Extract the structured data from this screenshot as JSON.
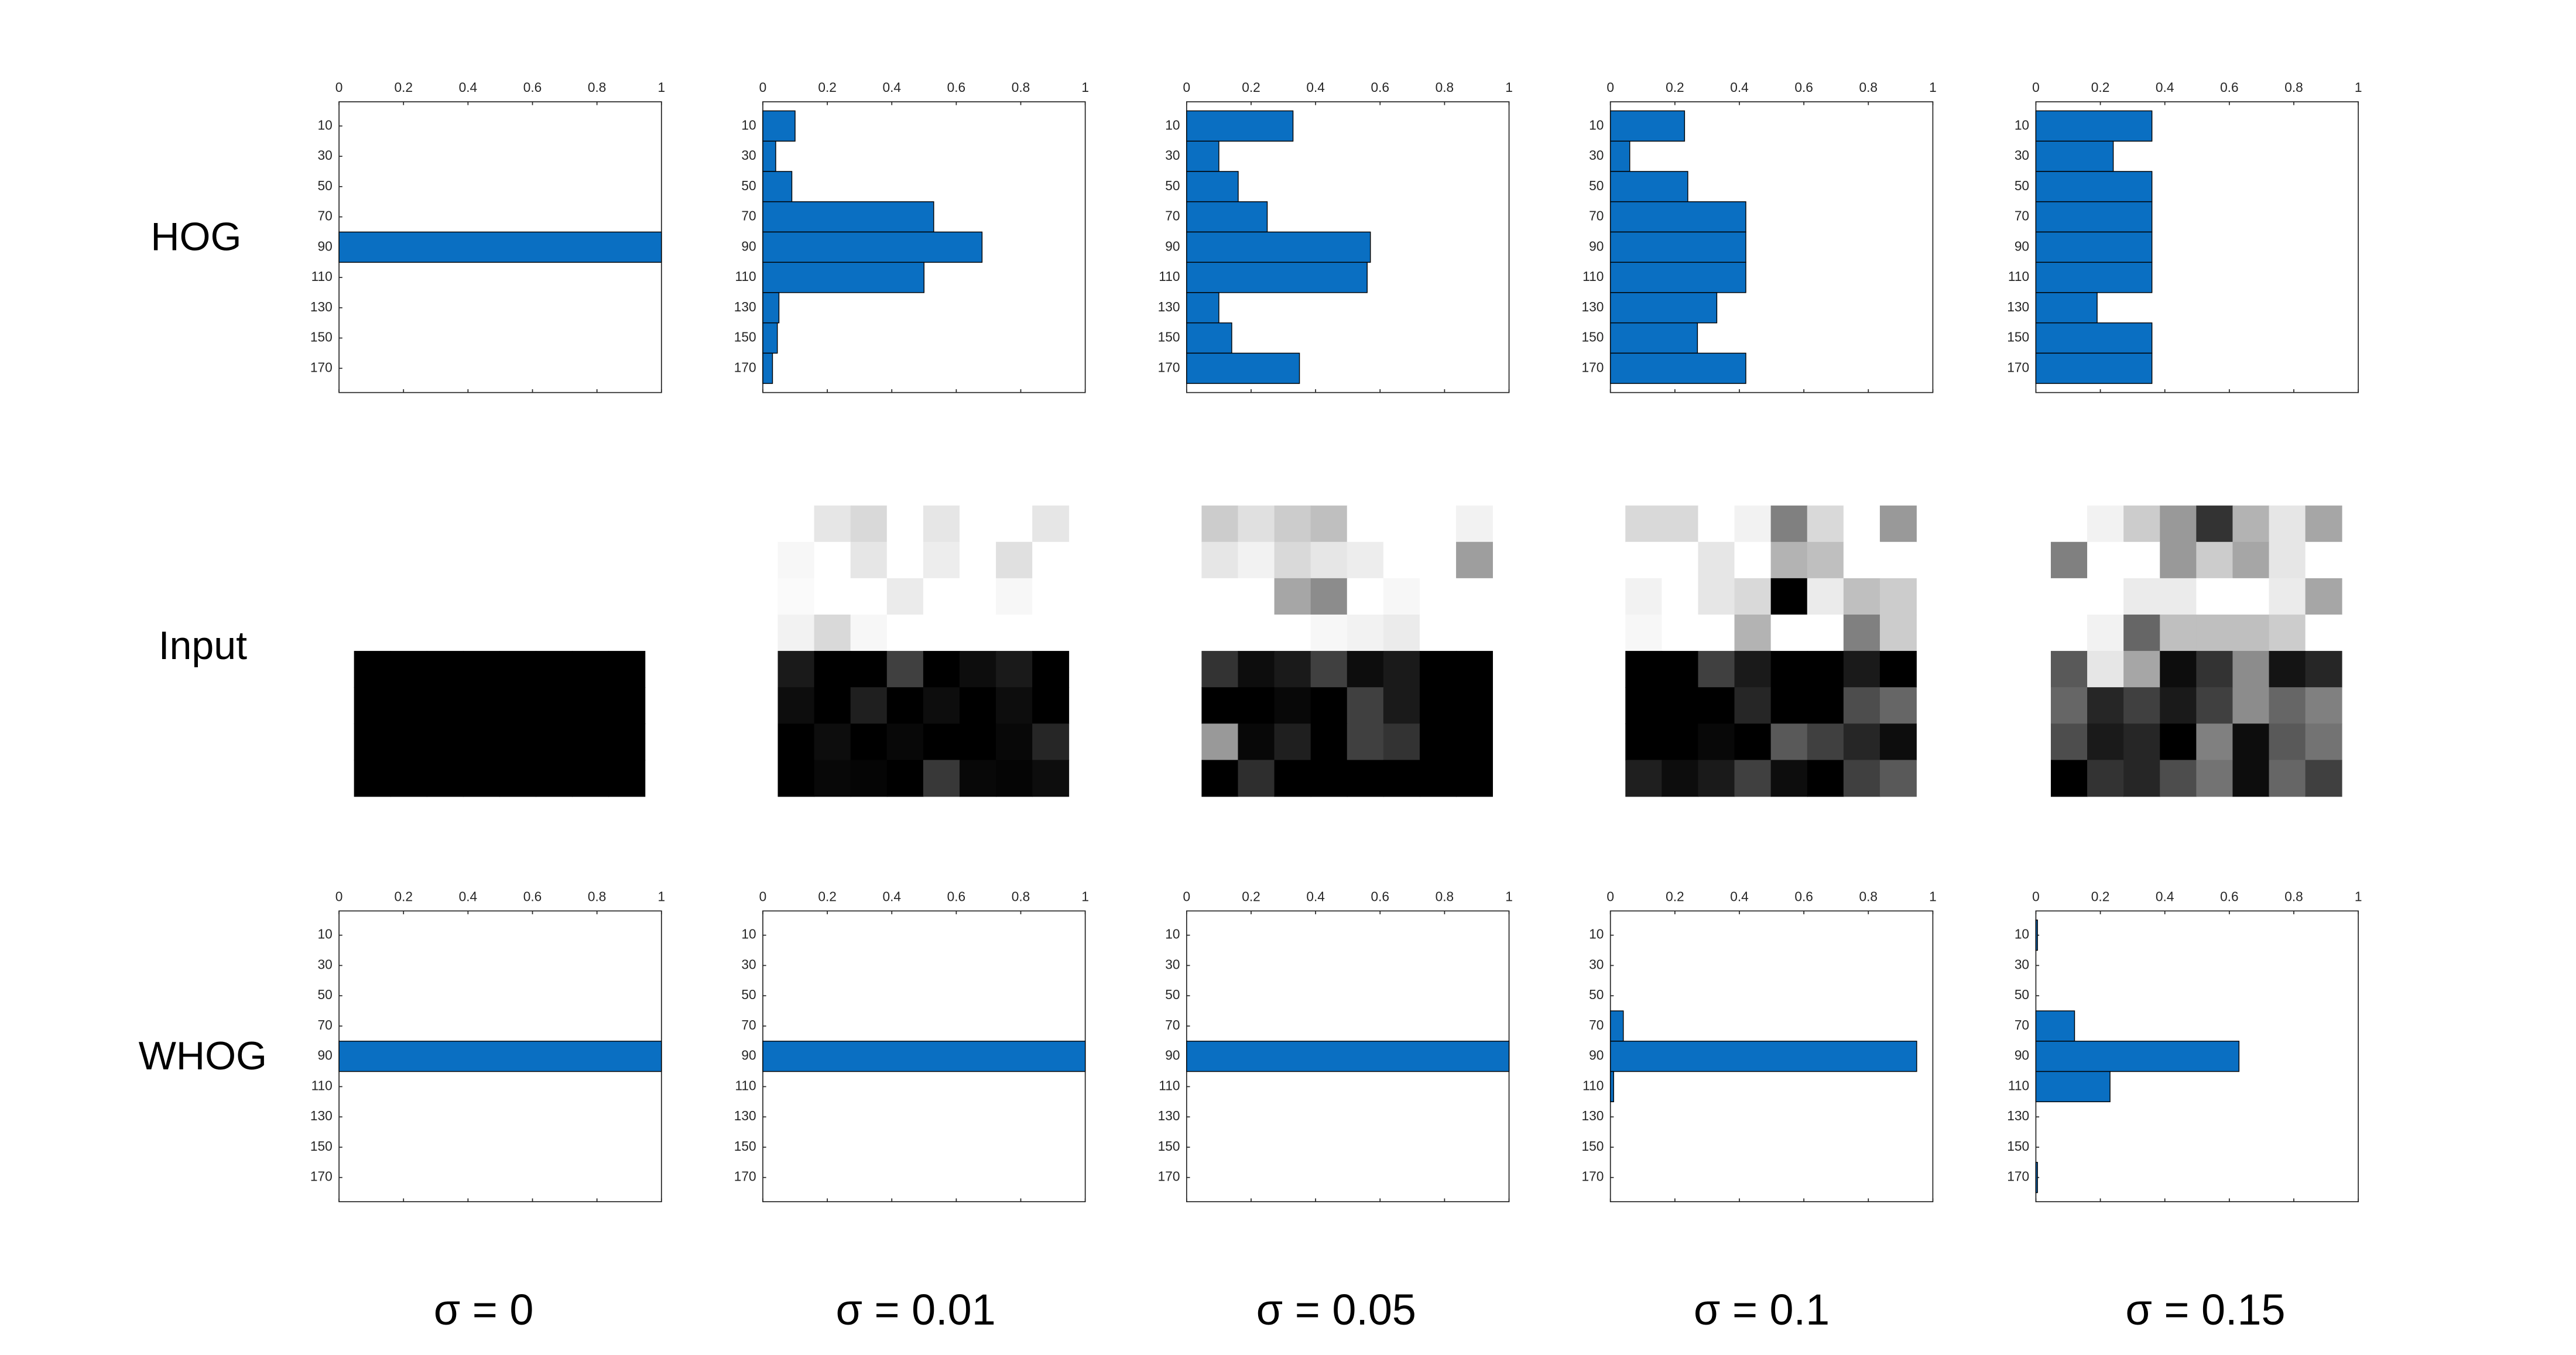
{
  "row_labels": [
    "HOG",
    "Input",
    "WHOG"
  ],
  "column_labels": [
    "σ = 0",
    "σ = 0.01",
    "σ = 0.05",
    "σ = 0.1",
    "σ = 0.15"
  ],
  "chart_data": [
    {
      "type": "barh",
      "color": "#0a6fc2",
      "categories": [
        10,
        30,
        50,
        70,
        90,
        110,
        130,
        150,
        170
      ],
      "values": [
        0,
        0,
        0,
        0,
        1,
        0,
        0,
        0,
        0
      ],
      "xlim": [
        0,
        1
      ],
      "xticks": [
        0,
        0.2,
        0.4,
        0.6,
        0.8,
        1
      ]
    },
    {
      "type": "barh",
      "color": "#0a6fc2",
      "categories": [
        10,
        30,
        50,
        70,
        90,
        110,
        130,
        150,
        170
      ],
      "values": [
        0.1,
        0.04,
        0.09,
        0.53,
        0.68,
        0.5,
        0.05,
        0.045,
        0.03
      ],
      "xlim": [
        0,
        1
      ],
      "xticks": [
        0,
        0.2,
        0.4,
        0.6,
        0.8,
        1
      ]
    },
    {
      "type": "barh",
      "color": "#0a6fc2",
      "categories": [
        10,
        30,
        50,
        70,
        90,
        110,
        130,
        150,
        170
      ],
      "values": [
        0.33,
        0.1,
        0.16,
        0.25,
        0.57,
        0.56,
        0.1,
        0.14,
        0.35
      ],
      "xlim": [
        0,
        1
      ],
      "xticks": [
        0,
        0.2,
        0.4,
        0.6,
        0.8,
        1
      ]
    },
    {
      "type": "barh",
      "color": "#0a6fc2",
      "categories": [
        10,
        30,
        50,
        70,
        90,
        110,
        130,
        150,
        170
      ],
      "values": [
        0.23,
        0.06,
        0.24,
        0.42,
        0.42,
        0.42,
        0.33,
        0.27,
        0.42
      ],
      "xlim": [
        0,
        1
      ],
      "xticks": [
        0,
        0.2,
        0.4,
        0.6,
        0.8,
        1
      ]
    },
    {
      "type": "barh",
      "color": "#0a6fc2",
      "categories": [
        10,
        30,
        50,
        70,
        90,
        110,
        130,
        150,
        170
      ],
      "values": [
        0.36,
        0.24,
        0.36,
        0.36,
        0.36,
        0.36,
        0.19,
        0.36,
        0.36
      ],
      "xlim": [
        0,
        1
      ],
      "xticks": [
        0,
        0.2,
        0.4,
        0.6,
        0.8,
        1
      ]
    },
    {
      "type": "image",
      "values": [
        [
          1,
          1,
          1,
          1,
          1,
          1,
          1,
          1
        ],
        [
          1,
          1,
          1,
          1,
          1,
          1,
          1,
          1
        ],
        [
          1,
          1,
          1,
          1,
          1,
          1,
          1,
          1
        ],
        [
          1,
          1,
          1,
          1,
          1,
          1,
          1,
          1
        ],
        [
          0,
          0,
          0,
          0,
          0,
          0,
          0,
          0
        ],
        [
          0,
          0,
          0,
          0,
          0,
          0,
          0,
          0
        ],
        [
          0,
          0,
          0,
          0,
          0,
          0,
          0,
          0
        ],
        [
          0,
          0,
          0,
          0,
          0,
          0,
          0,
          0
        ]
      ]
    },
    {
      "type": "image",
      "values": [
        [
          1,
          0.9,
          0.85,
          1,
          0.9,
          1,
          1,
          0.9
        ],
        [
          0.97,
          1,
          0.9,
          1,
          0.93,
          1,
          0.88,
          1
        ],
        [
          0.98,
          1,
          1,
          0.92,
          1,
          1,
          0.97,
          1
        ],
        [
          0.95,
          0.85,
          0.97,
          1,
          1,
          1,
          1,
          1
        ],
        [
          0.1,
          0,
          0,
          0.25,
          0,
          0.05,
          0.1,
          0
        ],
        [
          0.05,
          0,
          0.12,
          0,
          0.05,
          0,
          0.05,
          0
        ],
        [
          0,
          0.05,
          0,
          0.03,
          0,
          0,
          0.03,
          0.15
        ],
        [
          0,
          0.03,
          0.02,
          0,
          0.22,
          0.03,
          0.02,
          0.05
        ]
      ]
    },
    {
      "type": "image",
      "values": [
        [
          0.8,
          0.88,
          0.8,
          0.75,
          1,
          1,
          1,
          0.95
        ],
        [
          0.9,
          0.95,
          0.85,
          0.9,
          0.93,
          1,
          1,
          0.62
        ],
        [
          1,
          1,
          0.65,
          0.55,
          1,
          0.97,
          1,
          1
        ],
        [
          1,
          1,
          1,
          0.97,
          0.95,
          0.92,
          1,
          1
        ],
        [
          0.2,
          0.05,
          0.1,
          0.25,
          0.05,
          0.1,
          0,
          0
        ],
        [
          0,
          0,
          0.03,
          0,
          0.25,
          0.1,
          0,
          0
        ],
        [
          0.6,
          0.03,
          0.12,
          0,
          0.25,
          0.2,
          0,
          0
        ],
        [
          0,
          0.18,
          0,
          0,
          0,
          0,
          0,
          0
        ]
      ]
    },
    {
      "type": "image",
      "values": [
        [
          0.85,
          0.85,
          1,
          0.95,
          0.5,
          0.85,
          1,
          0.6
        ],
        [
          1,
          1,
          0.9,
          1,
          0.7,
          0.75,
          1,
          1
        ],
        [
          0.95,
          1,
          0.9,
          0.85,
          0,
          0.92,
          0.75,
          0.8
        ],
        [
          0.97,
          1,
          1,
          0.7,
          1,
          1,
          0.5,
          0.8
        ],
        [
          0,
          0,
          0.25,
          0.1,
          0,
          0,
          0.1,
          0
        ],
        [
          0,
          0,
          0,
          0.15,
          0,
          0,
          0.3,
          0.4
        ],
        [
          0,
          0,
          0.03,
          0,
          0.35,
          0.25,
          0.15,
          0.05
        ],
        [
          0.12,
          0.05,
          0.1,
          0.25,
          0.05,
          0,
          0.25,
          0.35
        ]
      ]
    },
    {
      "type": "image",
      "values": [
        [
          1,
          0.95,
          0.8,
          0.6,
          0.2,
          0.7,
          0.9,
          0.65
        ],
        [
          0.5,
          1,
          1,
          0.6,
          0.8,
          0.65,
          0.9,
          1
        ],
        [
          1,
          1,
          0.92,
          0.92,
          1,
          1,
          0.92,
          0.65
        ],
        [
          1,
          0.95,
          0.4,
          0.75,
          0.75,
          0.75,
          0.8,
          1
        ],
        [
          0.35,
          0.9,
          0.65,
          0.05,
          0.2,
          0.55,
          0.08,
          0.15
        ],
        [
          0.4,
          0.15,
          0.25,
          0.1,
          0.25,
          0.55,
          0.4,
          0.5
        ],
        [
          0.3,
          0.1,
          0.15,
          0,
          0.5,
          0.05,
          0.35,
          0.45
        ],
        [
          0,
          0.2,
          0.15,
          0.3,
          0.45,
          0.05,
          0.4,
          0.25
        ]
      ]
    },
    {
      "type": "barh",
      "color": "#0a6fc2",
      "categories": [
        10,
        30,
        50,
        70,
        90,
        110,
        130,
        150,
        170
      ],
      "values": [
        0,
        0,
        0,
        0,
        1,
        0,
        0,
        0,
        0
      ],
      "xlim": [
        0,
        1
      ],
      "xticks": [
        0,
        0.2,
        0.4,
        0.6,
        0.8,
        1
      ]
    },
    {
      "type": "barh",
      "color": "#0a6fc2",
      "categories": [
        10,
        30,
        50,
        70,
        90,
        110,
        130,
        150,
        170
      ],
      "values": [
        0,
        0,
        0,
        0,
        1,
        0,
        0,
        0,
        0
      ],
      "xlim": [
        0,
        1
      ],
      "xticks": [
        0,
        0.2,
        0.4,
        0.6,
        0.8,
        1
      ]
    },
    {
      "type": "barh",
      "color": "#0a6fc2",
      "categories": [
        10,
        30,
        50,
        70,
        90,
        110,
        130,
        150,
        170
      ],
      "values": [
        0,
        0,
        0,
        0,
        1,
        0,
        0,
        0,
        0
      ],
      "xlim": [
        0,
        1
      ],
      "xticks": [
        0,
        0.2,
        0.4,
        0.6,
        0.8,
        1
      ]
    },
    {
      "type": "barh",
      "color": "#0a6fc2",
      "categories": [
        10,
        30,
        50,
        70,
        90,
        110,
        130,
        150,
        170
      ],
      "values": [
        0,
        0,
        0,
        0.04,
        0.95,
        0.01,
        0,
        0,
        0
      ],
      "xlim": [
        0,
        1
      ],
      "xticks": [
        0,
        0.2,
        0.4,
        0.6,
        0.8,
        1
      ]
    },
    {
      "type": "barh",
      "color": "#0a6fc2",
      "categories": [
        10,
        30,
        50,
        70,
        90,
        110,
        130,
        150,
        170
      ],
      "values": [
        0.005,
        0,
        0,
        0.12,
        0.63,
        0.23,
        0,
        0,
        0.005
      ],
      "xlim": [
        0,
        1
      ],
      "xticks": [
        0,
        0.2,
        0.4,
        0.6,
        0.8,
        1
      ]
    }
  ]
}
